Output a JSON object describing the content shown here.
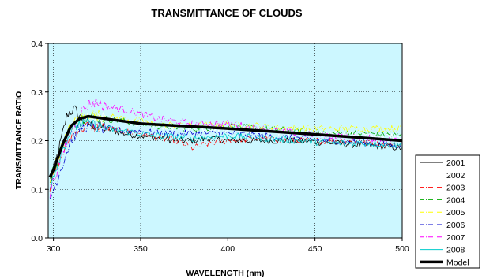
{
  "chart_data": {
    "type": "line",
    "title": "TRANSMITTANCE OF CLOUDS",
    "xlabel": "WAVELENGTH (nm)",
    "ylabel": "TRANSMITTANCE RATIO",
    "xlim": [
      297,
      500
    ],
    "ylim": [
      0.0,
      0.4
    ],
    "x_ticks": [
      300,
      350,
      400,
      450,
      500
    ],
    "y_ticks": [
      "0.0",
      "0.1",
      "0.2",
      "0.3",
      "0.4"
    ],
    "grid": true,
    "plot_background": "#ccf7ff",
    "legend_position": "right",
    "series": [
      {
        "name": "2001",
        "color": "#000000",
        "dash": "solid",
        "width": 0.8,
        "x": [
          298,
          300,
          303,
          306,
          308,
          310,
          312,
          315,
          318,
          320,
          325,
          330,
          340,
          350,
          360,
          370,
          380,
          390,
          400,
          420,
          440,
          460,
          480,
          500
        ],
        "y": [
          0.11,
          0.14,
          0.18,
          0.225,
          0.255,
          0.26,
          0.265,
          0.25,
          0.24,
          0.235,
          0.23,
          0.225,
          0.215,
          0.21,
          0.205,
          0.2,
          0.2,
          0.205,
          0.2,
          0.2,
          0.2,
          0.195,
          0.19,
          0.185
        ]
      },
      {
        "name": "2002",
        "color": "#ffffff",
        "dash": "solid",
        "width": 0.8,
        "x": [
          298,
          300,
          305,
          310,
          315,
          320,
          330,
          340,
          350,
          360,
          380,
          400,
          420,
          440,
          460,
          480,
          500
        ],
        "y": [
          0.12,
          0.14,
          0.19,
          0.23,
          0.245,
          0.25,
          0.245,
          0.24,
          0.235,
          0.23,
          0.225,
          0.225,
          0.22,
          0.215,
          0.215,
          0.21,
          0.21
        ]
      },
      {
        "name": "2003",
        "color": "#ff0000",
        "dash": "6,2,1,2",
        "width": 0.8,
        "x": [
          298,
          300,
          305,
          310,
          315,
          320,
          330,
          340,
          350,
          360,
          370,
          380,
          390,
          400,
          420,
          440,
          460,
          480,
          500
        ],
        "y": [
          0.1,
          0.13,
          0.17,
          0.21,
          0.225,
          0.23,
          0.225,
          0.22,
          0.215,
          0.205,
          0.2,
          0.185,
          0.195,
          0.2,
          0.205,
          0.2,
          0.2,
          0.195,
          0.19
        ]
      },
      {
        "name": "2004",
        "color": "#00aa00",
        "dash": "6,2,1,2",
        "width": 0.8,
        "x": [
          298,
          300,
          305,
          310,
          315,
          320,
          330,
          340,
          350,
          360,
          380,
          400,
          420,
          440,
          460,
          480,
          500
        ],
        "y": [
          0.12,
          0.14,
          0.19,
          0.23,
          0.245,
          0.25,
          0.245,
          0.24,
          0.235,
          0.23,
          0.225,
          0.23,
          0.225,
          0.22,
          0.215,
          0.215,
          0.21
        ]
      },
      {
        "name": "2005",
        "color": "#ffff00",
        "dash": "6,2,1,2",
        "width": 0.8,
        "x": [
          298,
          300,
          305,
          310,
          315,
          320,
          330,
          340,
          350,
          360,
          380,
          400,
          420,
          440,
          460,
          480,
          500
        ],
        "y": [
          0.12,
          0.14,
          0.19,
          0.23,
          0.245,
          0.255,
          0.25,
          0.245,
          0.24,
          0.235,
          0.23,
          0.235,
          0.23,
          0.225,
          0.225,
          0.225,
          0.225
        ]
      },
      {
        "name": "2006",
        "color": "#0000cc",
        "dash": "6,2,1,2",
        "width": 0.8,
        "x": [
          298,
          300,
          305,
          310,
          315,
          320,
          330,
          340,
          350,
          360,
          380,
          400,
          420,
          440,
          460,
          480,
          500
        ],
        "y": [
          0.08,
          0.1,
          0.15,
          0.2,
          0.225,
          0.23,
          0.225,
          0.22,
          0.22,
          0.215,
          0.215,
          0.215,
          0.21,
          0.205,
          0.2,
          0.195,
          0.19
        ]
      },
      {
        "name": "2007",
        "color": "#ff00ff",
        "dash": "6,2,1,2",
        "width": 0.8,
        "x": [
          298,
          300,
          305,
          310,
          315,
          320,
          325,
          330,
          340,
          350,
          360,
          380,
          400,
          420,
          440,
          460,
          480,
          500
        ],
        "y": [
          0.09,
          0.12,
          0.17,
          0.22,
          0.255,
          0.275,
          0.28,
          0.27,
          0.265,
          0.255,
          0.245,
          0.235,
          0.235,
          0.225,
          0.215,
          0.21,
          0.205,
          0.2
        ]
      },
      {
        "name": "2008",
        "color": "#00cccc",
        "dash": "solid",
        "width": 0.8,
        "x": [
          298,
          300,
          305,
          310,
          315,
          320,
          330,
          340,
          350,
          360,
          380,
          400,
          420,
          440,
          460,
          480,
          500
        ],
        "y": [
          0.11,
          0.13,
          0.18,
          0.22,
          0.235,
          0.235,
          0.225,
          0.22,
          0.215,
          0.21,
          0.205,
          0.21,
          0.205,
          0.2,
          0.195,
          0.195,
          0.19
        ]
      },
      {
        "name": "Model",
        "color": "#000000",
        "dash": "solid",
        "width": 3.5,
        "x": [
          298,
          300,
          305,
          310,
          315,
          320,
          330,
          350,
          400,
          450,
          500
        ],
        "y": [
          0.125,
          0.14,
          0.19,
          0.23,
          0.245,
          0.25,
          0.245,
          0.235,
          0.225,
          0.213,
          0.2
        ]
      }
    ]
  }
}
